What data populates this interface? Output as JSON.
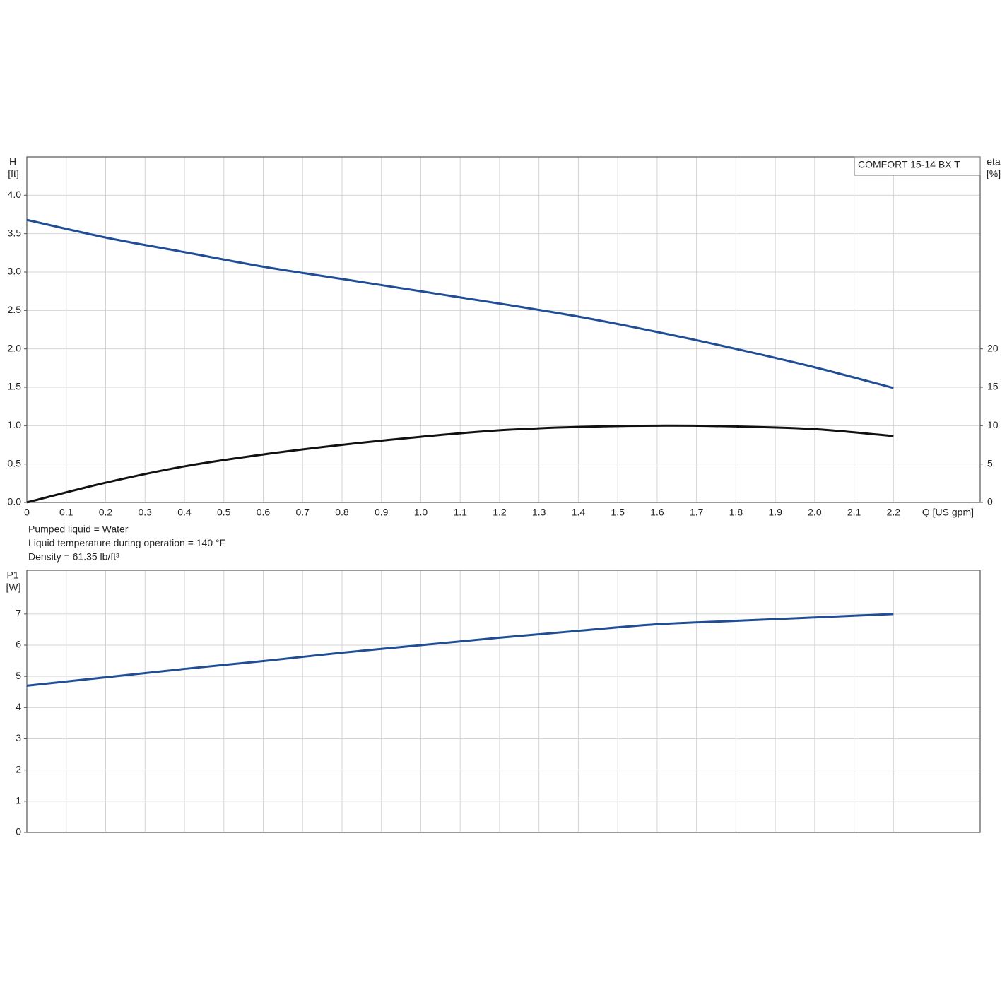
{
  "chart_data": [
    {
      "type": "line",
      "title": "COMFORT 15-14 BX T",
      "ylabel": "H",
      "yunit": "[ft]",
      "y2label": "eta",
      "y2unit": "[%]",
      "xlabel": "Q [US gpm]",
      "annotations": [
        "Pumped liquid = Water",
        "Liquid temperature during operation = 140 °F",
        "Density = 61.35 lb/ft³"
      ],
      "x": [
        0,
        0.2,
        0.4,
        0.6,
        0.8,
        1.0,
        1.2,
        1.4,
        1.6,
        1.8,
        2.0,
        2.2
      ],
      "series": [
        {
          "color": "#1f4e96",
          "values": [
            3.68,
            3.45,
            3.26,
            3.07,
            2.91,
            2.75,
            2.59,
            2.42,
            2.22,
            2.0,
            1.76,
            1.49
          ]
        },
        {
          "color": "#111111",
          "axis": "y2",
          "values": [
            0,
            2.57,
            4.7,
            6.25,
            7.5,
            8.55,
            9.4,
            9.83,
            10.0,
            9.9,
            9.55,
            8.64
          ]
        }
      ],
      "xlim": [
        0,
        2.42
      ],
      "xticks": [
        0,
        0.1,
        0.2,
        0.3,
        0.4,
        0.5,
        0.6,
        0.7,
        0.8,
        0.9,
        {
          "value": 1.0,
          "label": "1.0"
        },
        1.1,
        1.2,
        1.3,
        1.4,
        1.5,
        1.6,
        1.7,
        1.8,
        1.9,
        {
          "value": 2.0,
          "label": "2.0"
        },
        2.1,
        2.2
      ],
      "ylim": [
        0,
        4.5
      ],
      "yticks": [
        {
          "value": 0,
          "label": "0.0"
        },
        0.5,
        {
          "value": 1,
          "label": "1.0"
        },
        1.5,
        {
          "value": 2,
          "label": "2.0"
        },
        2.5,
        {
          "value": 3,
          "label": "3.0"
        },
        3.5,
        {
          "value": 4,
          "label": "4.0"
        }
      ],
      "y2lim": [
        0,
        45
      ],
      "y2ticks": [
        0,
        5,
        10,
        15,
        20
      ],
      "grid": true
    },
    {
      "type": "line",
      "ylabel": "P1",
      "yunit": "[W]",
      "x": [
        0,
        0.2,
        0.4,
        0.6,
        0.8,
        1.0,
        1.2,
        1.4,
        1.6,
        1.8,
        2.0,
        2.2
      ],
      "series": [
        {
          "color": "#1f4e96",
          "values": [
            4.7,
            4.97,
            5.24,
            5.49,
            5.76,
            6.0,
            6.24,
            6.46,
            6.67,
            6.78,
            6.89,
            7.0
          ]
        }
      ],
      "xlim": [
        0,
        2.42
      ],
      "ylim": [
        0,
        8.4
      ],
      "yticks": [
        0,
        1,
        2,
        3,
        4,
        5,
        6,
        7
      ],
      "grid": true
    }
  ]
}
